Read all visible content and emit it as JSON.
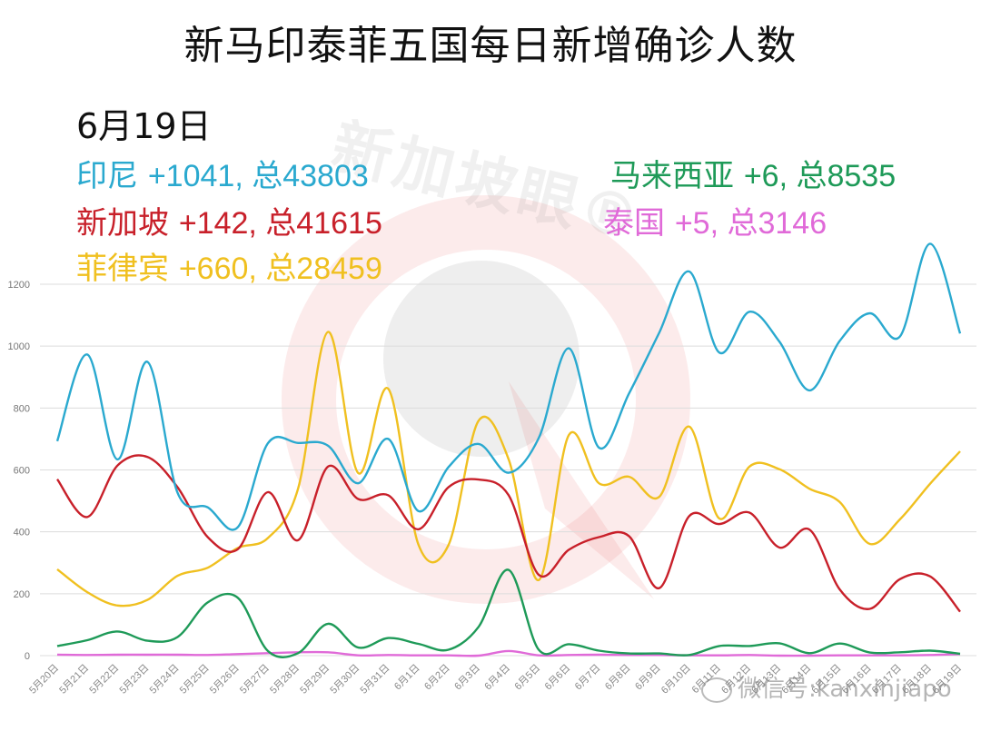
{
  "title": "新马印泰菲五国每日新增确诊人数",
  "date_label": "6月19日",
  "summary": [
    {
      "country": "印尼",
      "new": "+1041",
      "total_label": "总43803",
      "color": "#2aa9cf"
    },
    {
      "country": "新加坡",
      "new": "+142",
      "total_label": "总41615",
      "color": "#c8202a"
    },
    {
      "country": "菲律宾",
      "new": "+660",
      "total_label": "总28459",
      "color": "#f0c020"
    },
    {
      "country": "马来西亚",
      "new": "+6",
      "total_label": "总8535",
      "color": "#1e9a58"
    },
    {
      "country": "泰国",
      "new": "+5",
      "total_label": "总3146",
      "color": "#e06ad8"
    }
  ],
  "watermark": {
    "logo_text": "新加坡眼®",
    "wechat_text": "微信号:kanxinjiapo"
  },
  "chart_data": {
    "type": "line",
    "title": "新马印泰菲五国每日新增确诊人数",
    "subtitle": "6月19日",
    "xlabel": "",
    "ylabel": "",
    "ylim": [
      0,
      1200
    ],
    "yticks": [
      0,
      200,
      400,
      600,
      800,
      1000,
      1200
    ],
    "grid": true,
    "legend_position": "top (text annotations)",
    "categories": [
      "5月20日",
      "5月21日",
      "5月22日",
      "5月23日",
      "5月24日",
      "5月25日",
      "5月26日",
      "5月27日",
      "5月28日",
      "5月29日",
      "5月30日",
      "5月31日",
      "6月1日",
      "6月2日",
      "6月3日",
      "6月4日",
      "6月5日",
      "6月6日",
      "6月7日",
      "6月8日",
      "6月9日",
      "6月10日",
      "6月11日",
      "6月12日",
      "6月13日",
      "6月14日",
      "6月15日",
      "6月16日",
      "6月17日",
      "6月18日",
      "6月19日"
    ],
    "series": [
      {
        "name": "印尼",
        "color": "#2aa9cf",
        "values": [
          693,
          973,
          634,
          949,
          526,
          479,
          415,
          686,
          687,
          678,
          557,
          700,
          467,
          609,
          684,
          591,
          703,
          993,
          672,
          847,
          1043,
          1241,
          979,
          1111,
          1014,
          857,
          1017,
          1106,
          1031,
          1331,
          1041
        ]
      },
      {
        "name": "新加坡",
        "color": "#c8202a",
        "values": [
          570,
          448,
          614,
          642,
          544,
          383,
          344,
          528,
          373,
          611,
          506,
          518,
          408,
          544,
          569,
          518,
          261,
          342,
          383,
          386,
          218,
          451,
          425,
          462,
          349,
          407,
          214,
          151,
          247,
          256,
          142
        ]
      },
      {
        "name": "菲律宾",
        "color": "#f0c020",
        "values": [
          279,
          205,
          162,
          180,
          258,
          284,
          348,
          380,
          539,
          1046,
          590,
          862,
          359,
          357,
          759,
          634,
          244,
          713,
          557,
          578,
          513,
          740,
          443,
          611,
          602,
          539,
          496,
          361,
          440,
          555,
          660
        ]
      },
      {
        "name": "马来西亚",
        "color": "#1e9a58",
        "values": [
          31,
          50,
          78,
          48,
          60,
          172,
          187,
          15,
          8,
          103,
          26,
          57,
          38,
          19,
          93,
          277,
          19,
          37,
          16,
          7,
          7,
          2,
          31,
          31,
          40,
          8,
          39,
          10,
          11,
          16,
          6
        ]
      },
      {
        "name": "泰国",
        "color": "#e06ad8",
        "values": [
          3,
          2,
          3,
          3,
          3,
          2,
          5,
          8,
          11,
          11,
          1,
          2,
          1,
          1,
          0,
          15,
          1,
          2,
          3,
          2,
          2,
          1,
          1,
          2,
          0,
          0,
          1,
          1,
          1,
          2,
          5
        ]
      }
    ]
  }
}
